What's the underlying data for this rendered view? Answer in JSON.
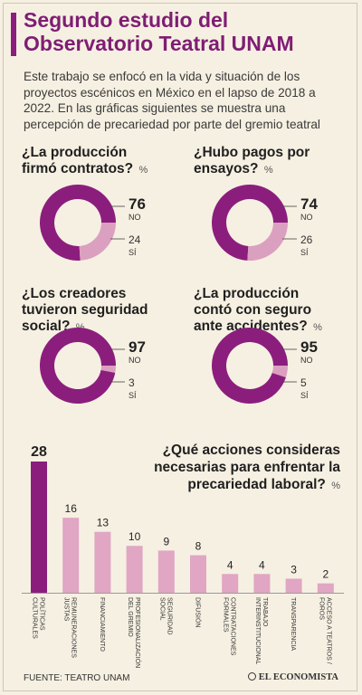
{
  "title_line1": "Segundo estudio del",
  "title_line2": "Observatorio Teatral UNAM",
  "intro": "Este trabajo se enfocó en la vida y situación de los proyectos escénicos en México en el lapso de 2018 a 2022. En las gráficas siguientes se muestra una percepción de precariedad por parte del gremio teatral",
  "pct_symbol": "%",
  "colors": {
    "title": "#7f1d73",
    "no": "#8b1e7d",
    "si": "#dba0c0",
    "bar_top": "#8b1e7d",
    "bar": "#e0a6c4"
  },
  "chart_data": [
    {
      "type": "pie",
      "title_line1": "¿La producción",
      "title_line2": "firmó contratos?",
      "unit": "%",
      "categories": [
        "NO",
        "SÍ"
      ],
      "values": [
        76,
        24
      ]
    },
    {
      "type": "pie",
      "title_line1": "¿Hubo pagos por",
      "title_line2": "ensayos?",
      "unit": "%",
      "categories": [
        "NO",
        "SÍ"
      ],
      "values": [
        74,
        26
      ]
    },
    {
      "type": "pie",
      "title_line1": "¿Los creadores",
      "title_line2": "tuvieron seguridad",
      "title_line3": "social?",
      "unit": "%",
      "categories": [
        "NO",
        "SÍ"
      ],
      "values": [
        97,
        3
      ]
    },
    {
      "type": "pie",
      "title_line1": "¿La producción",
      "title_line2": "contó con seguro",
      "title_line3": "ante accidentes?",
      "unit": "%",
      "categories": [
        "NO",
        "SÍ"
      ],
      "values": [
        95,
        5
      ]
    },
    {
      "type": "bar",
      "title_line1": "¿Qué acciones consideras",
      "title_line2": "necesarias para enfrentar la",
      "title_line3": "precariedad laboral?",
      "unit": "%",
      "categories": [
        [
          "POLÍTICAS",
          "CULTURALES"
        ],
        [
          "REMUNERACIONES",
          "JUSTAS"
        ],
        [
          "FINANCIAMIENTO"
        ],
        [
          "PROFESIONALIZACIÓN",
          "DEL GREMIO"
        ],
        [
          "SEGURIDAD",
          "SOCIAL"
        ],
        [
          "DIFUSIÓN"
        ],
        [
          "CONTRATACIONES",
          "FORMALES"
        ],
        [
          "TRABAJO",
          "INTERINSTITUCIONAL"
        ],
        [
          "TRANSPARENCIA"
        ],
        [
          "ACCESO A TEATROS /",
          "FOROS"
        ]
      ],
      "values": [
        28,
        16,
        13,
        10,
        9,
        8,
        4,
        4,
        3,
        2
      ]
    }
  ],
  "source": "FUENTE: TEATRO UNAM",
  "brand": "EL ECONOMISTA"
}
